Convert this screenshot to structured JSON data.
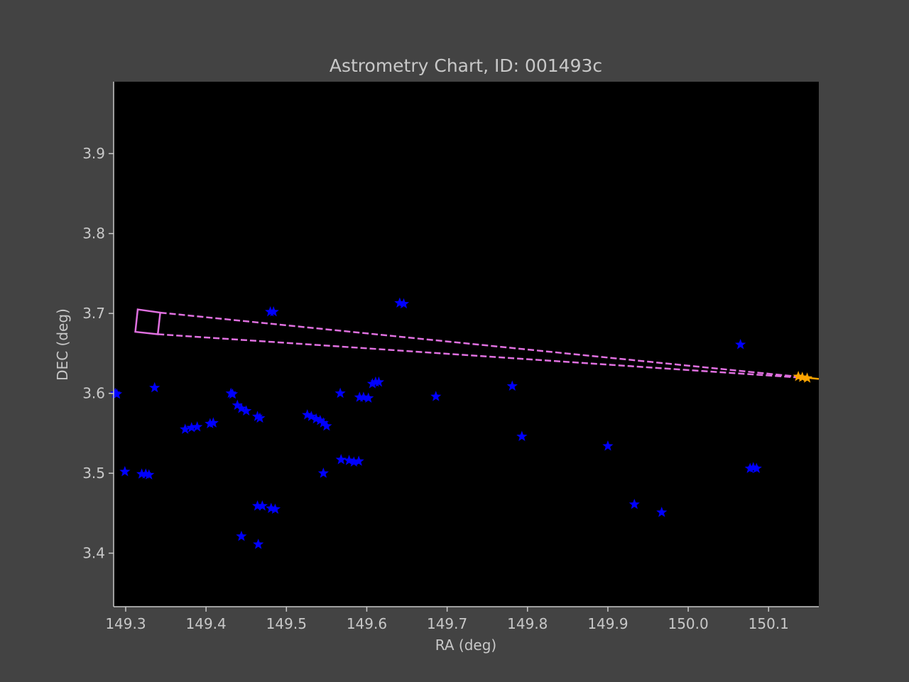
{
  "chart_data": {
    "type": "scatter",
    "title": "Astrometry Chart, ID: 001493c",
    "xlabel": "RA (deg)",
    "ylabel": "DEC (deg)",
    "xlim": [
      149.285,
      150.1625
    ],
    "ylim": [
      3.333,
      3.99
    ],
    "xticks": [
      {
        "value": 149.3,
        "label": "149.3"
      },
      {
        "value": 149.4,
        "label": "149.4"
      },
      {
        "value": 149.5,
        "label": "149.5"
      },
      {
        "value": 149.6,
        "label": "149.6"
      },
      {
        "value": 149.7,
        "label": "149.7"
      },
      {
        "value": 149.8,
        "label": "149.8"
      },
      {
        "value": 149.9,
        "label": "149.9"
      },
      {
        "value": 150.0,
        "label": "150.0"
      },
      {
        "value": 150.1,
        "label": "150.1"
      }
    ],
    "yticks": [
      {
        "value": 3.4,
        "label": "3.4"
      },
      {
        "value": 3.5,
        "label": "3.5"
      },
      {
        "value": 3.6,
        "label": "3.6"
      },
      {
        "value": 3.7,
        "label": "3.7"
      },
      {
        "value": 3.8,
        "label": "3.8"
      },
      {
        "value": 3.9,
        "label": "3.9"
      }
    ],
    "grid": false,
    "colors": {
      "figure_background": "#434343",
      "plot_background": "#000000",
      "axis_text": "#c8c8c8",
      "stars": "#0000ff",
      "target": "#ffa500",
      "field_of_view": "#e070e0"
    },
    "series": [
      {
        "marker": "star",
        "color": "#0000ff",
        "points": [
          [
            149.287,
            3.6
          ],
          [
            149.289,
            3.599
          ],
          [
            149.299,
            3.502
          ],
          [
            149.32,
            3.499
          ],
          [
            149.325,
            3.499
          ],
          [
            149.329,
            3.498
          ],
          [
            149.336,
            3.607
          ],
          [
            149.374,
            3.555
          ],
          [
            149.382,
            3.557
          ],
          [
            149.389,
            3.558
          ],
          [
            149.405,
            3.562
          ],
          [
            149.409,
            3.563
          ],
          [
            149.431,
            3.6
          ],
          [
            149.433,
            3.599
          ],
          [
            149.439,
            3.585
          ],
          [
            149.444,
            3.581
          ],
          [
            149.45,
            3.578
          ],
          [
            149.444,
            3.421
          ],
          [
            149.464,
            3.571
          ],
          [
            149.467,
            3.569
          ],
          [
            149.464,
            3.459
          ],
          [
            149.47,
            3.459
          ],
          [
            149.465,
            3.411
          ],
          [
            149.48,
            3.702
          ],
          [
            149.484,
            3.702
          ],
          [
            149.481,
            3.456
          ],
          [
            149.486,
            3.455
          ],
          [
            149.526,
            3.573
          ],
          [
            149.531,
            3.571
          ],
          [
            149.537,
            3.568
          ],
          [
            149.542,
            3.566
          ],
          [
            149.546,
            3.563
          ],
          [
            149.55,
            3.559
          ],
          [
            149.546,
            3.5
          ],
          [
            149.567,
            3.6
          ],
          [
            149.568,
            3.517
          ],
          [
            149.578,
            3.516
          ],
          [
            149.584,
            3.514
          ],
          [
            149.59,
            3.515
          ],
          [
            149.591,
            3.595
          ],
          [
            149.596,
            3.595
          ],
          [
            149.602,
            3.594
          ],
          [
            149.607,
            3.612
          ],
          [
            149.611,
            3.614
          ],
          [
            149.615,
            3.614
          ],
          [
            149.641,
            3.713
          ],
          [
            149.646,
            3.712
          ],
          [
            149.686,
            3.596
          ],
          [
            149.781,
            3.609
          ],
          [
            149.793,
            3.546
          ],
          [
            149.9,
            3.534
          ],
          [
            149.933,
            3.461
          ],
          [
            149.967,
            3.451
          ],
          [
            150.065,
            3.661
          ],
          [
            150.077,
            3.506
          ],
          [
            150.081,
            3.507
          ],
          [
            150.085,
            3.506
          ]
        ]
      },
      {
        "marker": "star",
        "color": "#ffa500",
        "points": [
          [
            150.137,
            3.621
          ],
          [
            150.142,
            3.62
          ],
          [
            150.148,
            3.619
          ]
        ]
      }
    ],
    "overlay": {
      "color": "#e070e0",
      "fov_box": [
        [
          149.315,
          3.705
        ],
        [
          149.343,
          3.701
        ],
        [
          149.34,
          3.674
        ],
        [
          149.312,
          3.677
        ]
      ],
      "dashed_lines": [
        [
          [
            149.343,
            3.701
          ],
          [
            150.135,
            3.621
          ]
        ],
        [
          [
            149.34,
            3.674
          ],
          [
            150.135,
            3.62
          ]
        ]
      ],
      "orange_line": [
        [
          150.135,
          3.621
        ],
        [
          150.165,
          3.618
        ]
      ]
    }
  }
}
